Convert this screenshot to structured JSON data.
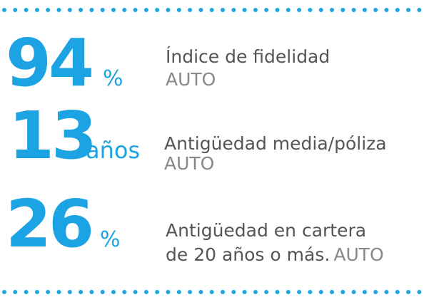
{
  "items": [
    {
      "number": 94,
      "unit": "%",
      "lines": [
        "Índice de fidelidad"
      ],
      "tag": "AUTO"
    },
    {
      "number": 13,
      "unit": "años",
      "lines": [
        "Antigüedad media/póliza"
      ],
      "tag": "AUTO"
    },
    {
      "number": 26,
      "unit": "%",
      "lines": [
        "Antigüedad en cartera",
        "de 20 años o más."
      ],
      "tag": "AUTO"
    }
  ]
}
